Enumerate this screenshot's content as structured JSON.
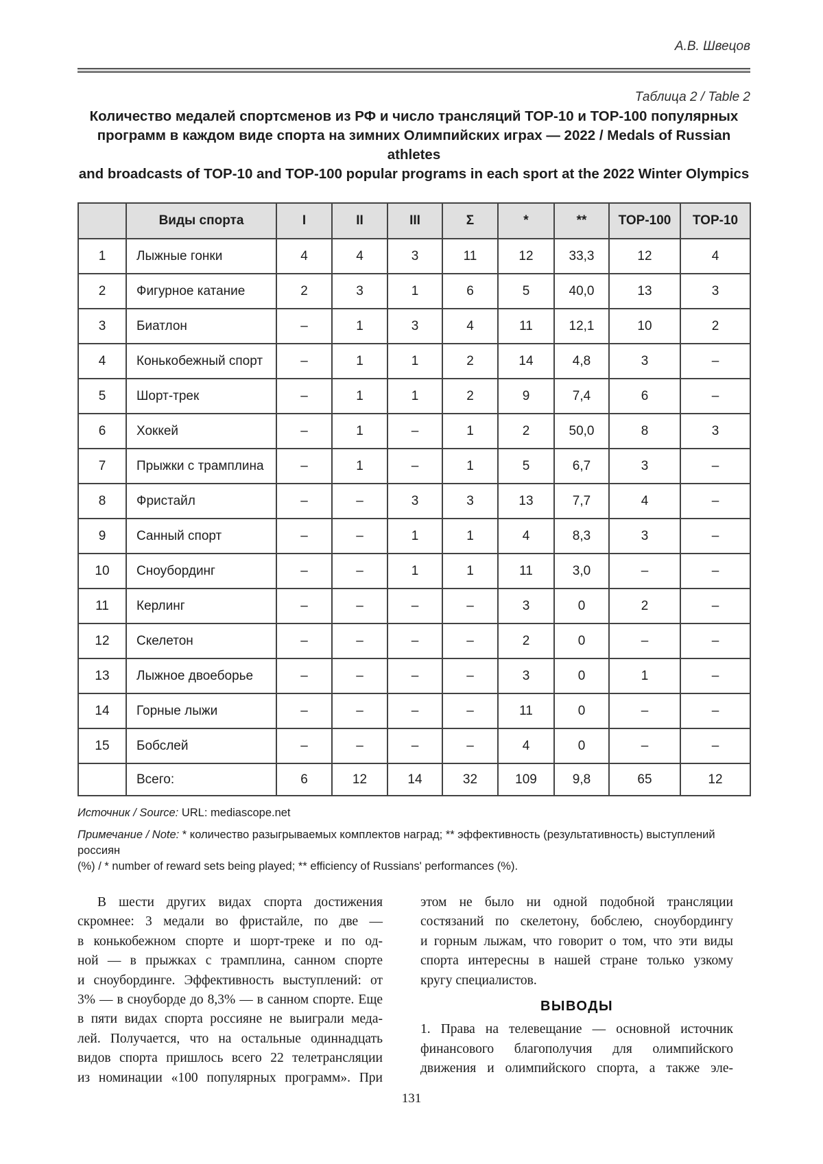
{
  "header": {
    "author": "А.В. Швецов"
  },
  "table_section": {
    "label": "Таблица 2 / Table 2",
    "caption": "Количество медалей спортсменов из РФ и число трансляций TOP-10 и TOP-100 популярных\nпрограмм в каждом виде спорта на зимних Олимпийских играх — 2022 / Medals of Russian athletes\nand broadcasts of TOP-10 and TOP-100 popular programs in each sport at the 2022 Winter Olympics",
    "columns": [
      "",
      "Виды спорта",
      "I",
      "II",
      "III",
      "Σ",
      "*",
      "**",
      "TOP-100",
      "TOP-10"
    ],
    "rows": [
      [
        "1",
        "Лыжные гонки",
        "4",
        "4",
        "3",
        "11",
        "12",
        "33,3",
        "12",
        "4"
      ],
      [
        "2",
        "Фигурное катание",
        "2",
        "3",
        "1",
        "6",
        "5",
        "40,0",
        "13",
        "3"
      ],
      [
        "3",
        "Биатлон",
        "–",
        "1",
        "3",
        "4",
        "11",
        "12,1",
        "10",
        "2"
      ],
      [
        "4",
        "Конькобежный спорт",
        "–",
        "1",
        "1",
        "2",
        "14",
        "4,8",
        "3",
        "–"
      ],
      [
        "5",
        "Шорт-трек",
        "–",
        "1",
        "1",
        "2",
        "9",
        "7,4",
        "6",
        "–"
      ],
      [
        "6",
        "Хоккей",
        "–",
        "1",
        "–",
        "1",
        "2",
        "50,0",
        "8",
        "3"
      ],
      [
        "7",
        "Прыжки с трамплина",
        "–",
        "1",
        "–",
        "1",
        "5",
        "6,7",
        "3",
        "–"
      ],
      [
        "8",
        "Фристайл",
        "–",
        "–",
        "3",
        "3",
        "13",
        "7,7",
        "4",
        "–"
      ],
      [
        "9",
        "Санный спорт",
        "–",
        "–",
        "1",
        "1",
        "4",
        "8,3",
        "3",
        "–"
      ],
      [
        "10",
        "Сноубординг",
        "–",
        "–",
        "1",
        "1",
        "11",
        "3,0",
        "–",
        "–"
      ],
      [
        "11",
        "Керлинг",
        "–",
        "–",
        "–",
        "–",
        "3",
        "0",
        "2",
        "–"
      ],
      [
        "12",
        "Скелетон",
        "–",
        "–",
        "–",
        "–",
        "2",
        "0",
        "–",
        "–"
      ],
      [
        "13",
        "Лыжное двоеборье",
        "–",
        "–",
        "–",
        "–",
        "3",
        "0",
        "1",
        "–"
      ],
      [
        "14",
        "Горные лыжи",
        "–",
        "–",
        "–",
        "–",
        "11",
        "0",
        "–",
        "–"
      ],
      [
        "15",
        "Бобслей",
        "–",
        "–",
        "–",
        "–",
        "4",
        "0",
        "–",
        "–"
      ]
    ],
    "total_row": [
      "",
      "Всего:",
      "6",
      "12",
      "14",
      "32",
      "109",
      "9,8",
      "65",
      "12"
    ],
    "source_label": "Источник / Source:",
    "source_value": " URL: mediascope.net",
    "note_label": "Примечание / Note:",
    "note_value": " * количество разыгрываемых комплектов наград; ** эффективность (результативность) выступлений россиян\n(%) / * number of reward sets being played; ** efficiency of Russians' performances (%)."
  },
  "body": {
    "left_column": "В шести других видах спорта достижения\nскромнее: 3 медали во фристайле, по две —\nв конькобежном спорте и шорт-треке и по од-\nной — в прыжках с трамплина, санном спорте\nи сноубординге. Эффективность выступлений: от\n3% — в сноуборде до 8,3% — в санном спорте. Еще\nв пяти видах спорта россияне не выиграли меда-\nлей. Получается, что на остальные одиннадцать\nвидов спорта пришлось всего 22 телетрансляции\nиз номинации «100 популярных программ». При",
    "right_p1": "этом не было ни одной подобной трансляции\nсостязаний по скелетону, бобслею, сноубордингу\nи горным лыжам, что говорит о том, что эти виды\nспорта интересны в нашей стране только узкому",
    "right_p1_last": "кругу специалистов.",
    "conclusions_heading": "ВЫВОДЫ",
    "right_p2": "1. Права на телевещание — основной источник\nфинансового благополучия для олимпийского\nдвижения и олимпийского спорта, а также эле-"
  },
  "footer": {
    "page_number": "131"
  }
}
